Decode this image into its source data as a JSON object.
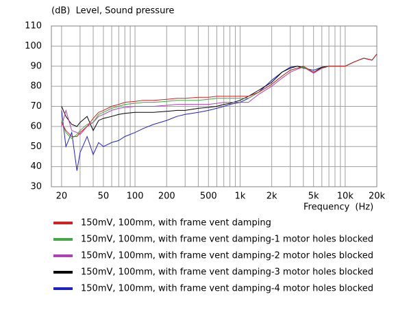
{
  "chart_data": {
    "type": "line",
    "title": "(dB)  Level, Sound pressure",
    "x_label": "Frequency  (Hz)",
    "log_x": true,
    "grid": true,
    "xlim": [
      16,
      20000
    ],
    "xticks": [
      20,
      50,
      100,
      200,
      500,
      {
        "value": 1000,
        "label": "1k"
      },
      {
        "value": 2000,
        "label": "2k"
      },
      {
        "value": 5000,
        "label": "5k"
      },
      {
        "value": 10000,
        "label": "10k"
      },
      {
        "value": 20000,
        "label": "20k"
      }
    ],
    "xminor_ticks": [
      30,
      40,
      60,
      70,
      80,
      90,
      300,
      400,
      600,
      700,
      800,
      900,
      3000,
      4000,
      6000,
      7000,
      8000,
      9000
    ],
    "ylim": [
      30,
      110
    ],
    "yticks": [
      30,
      40,
      50,
      60,
      70,
      80,
      90,
      100,
      110
    ],
    "x": [
      20,
      22,
      25,
      28,
      30,
      35,
      40,
      45,
      50,
      60,
      70,
      80,
      100,
      120,
      150,
      200,
      250,
      300,
      400,
      500,
      600,
      700,
      800,
      1000,
      1200,
      1500,
      2000,
      2500,
      3000,
      3500,
      4000,
      5000,
      6000,
      7000,
      8000,
      10000,
      12000,
      15000,
      18000,
      20000
    ],
    "series": [
      {
        "name": "150mV, 100mm, with frame vent damping",
        "color": "#d42020",
        "values": [
          62,
          58,
          55,
          55,
          57,
          60,
          64,
          67,
          68,
          70,
          71,
          72,
          72.5,
          73,
          73,
          73.5,
          74,
          74,
          74.5,
          74.5,
          75,
          75,
          75,
          75,
          75,
          77,
          81,
          85,
          88,
          89,
          90,
          87,
          89,
          90,
          90,
          90,
          92,
          94,
          93,
          96
        ]
      },
      {
        "name": "150mV, 100mm, with frame vent damping-1 motor holes blocked",
        "color": "#44a844",
        "values": [
          63,
          57,
          54,
          56,
          58,
          61,
          62,
          66,
          67,
          69,
          70,
          71,
          71.5,
          72,
          72,
          72.5,
          73,
          73,
          73,
          73.5,
          74,
          74,
          74,
          74,
          74,
          77,
          81,
          85,
          88,
          89,
          89.5,
          87,
          89,
          90,
          90,
          90,
          92,
          94,
          93,
          96
        ]
      },
      {
        "name": "150mV, 100mm, with frame vent damping-2 motor holes blocked",
        "color": "#b040b8",
        "values": [
          60,
          68,
          58,
          57,
          56,
          60,
          62,
          65,
          66,
          68,
          69,
          69.5,
          70,
          70,
          70,
          70.5,
          71,
          71,
          71,
          71,
          71.5,
          72,
          72,
          72,
          72,
          76,
          80,
          84,
          87,
          88.5,
          89.5,
          86.5,
          89,
          90,
          90,
          90,
          92,
          94,
          93,
          96
        ]
      },
      {
        "name": "150mV, 100mm, with frame vent damping-3 motor holes blocked",
        "color": "#000000",
        "values": [
          70,
          65,
          61,
          60,
          62,
          65,
          58,
          63,
          64,
          65,
          66,
          66.5,
          67,
          67,
          67,
          67.5,
          68,
          68,
          69,
          69.5,
          70,
          71,
          71.5,
          73,
          75,
          78,
          82,
          87,
          89,
          90,
          89.5,
          87,
          89.5,
          90,
          90,
          90,
          92,
          94,
          93,
          96
        ]
      },
      {
        "name": "150mV, 100mm, with frame vent damping-4 motor holes blocked",
        "color": "#2020c8",
        "values": [
          68,
          50,
          57,
          38,
          47,
          55,
          46,
          52,
          50,
          52,
          53,
          55,
          57,
          59,
          61,
          63,
          65,
          66,
          67,
          68,
          69,
          70,
          71,
          72,
          74,
          77,
          83,
          87,
          89.5,
          90,
          89,
          88,
          89.5,
          90,
          90,
          90,
          92,
          94,
          93,
          96
        ]
      }
    ]
  }
}
